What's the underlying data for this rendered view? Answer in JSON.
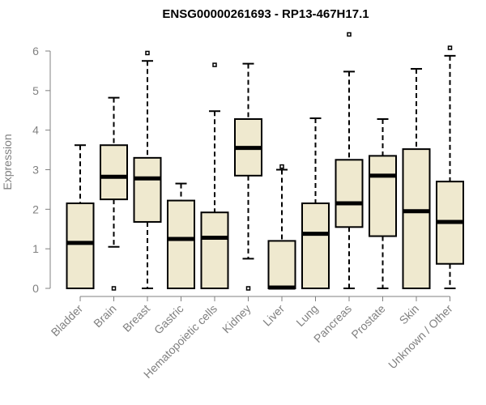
{
  "chart_data": {
    "type": "box",
    "title": "ENSG00000261693 - RP13-467H17.1",
    "ylabel": "Expression",
    "ylim": [
      0,
      6
    ],
    "yticks": [
      0,
      1,
      2,
      3,
      4,
      5,
      6
    ],
    "categories": [
      "Bladder",
      "Brain",
      "Breast",
      "Gastric",
      "Hematopoietic cells",
      "Kidney",
      "Liver",
      "Lung",
      "Pancreas",
      "Prostate",
      "Skin",
      "Unknown / Other"
    ],
    "boxes": [
      {
        "min": 0,
        "q1": 0,
        "median": 1.15,
        "q3": 2.15,
        "max": 3.62,
        "outliers": []
      },
      {
        "min": 1.05,
        "q1": 2.25,
        "median": 2.82,
        "q3": 3.62,
        "max": 4.82,
        "outliers": [
          0
        ]
      },
      {
        "min": 0,
        "q1": 1.68,
        "median": 2.78,
        "q3": 3.3,
        "max": 5.75,
        "outliers": [
          5.95
        ]
      },
      {
        "min": 0,
        "q1": 0,
        "median": 1.25,
        "q3": 2.22,
        "max": 2.65,
        "outliers": []
      },
      {
        "min": 0,
        "q1": 0,
        "median": 1.28,
        "q3": 1.92,
        "max": 4.48,
        "outliers": [
          5.65
        ]
      },
      {
        "min": 0.75,
        "q1": 2.85,
        "median": 3.55,
        "q3": 4.28,
        "max": 5.68,
        "outliers": [
          0
        ]
      },
      {
        "min": 0,
        "q1": 0,
        "median": 0.02,
        "q3": 1.2,
        "max": 3.0,
        "outliers": [
          3.08
        ]
      },
      {
        "min": 0,
        "q1": 0,
        "median": 1.38,
        "q3": 2.15,
        "max": 4.3,
        "outliers": []
      },
      {
        "min": 0,
        "q1": 1.55,
        "median": 2.15,
        "q3": 3.25,
        "max": 5.48,
        "outliers": [
          6.42
        ]
      },
      {
        "min": 0,
        "q1": 1.32,
        "median": 2.85,
        "q3": 3.35,
        "max": 4.28,
        "outliers": []
      },
      {
        "min": 0,
        "q1": 0,
        "median": 1.95,
        "q3": 3.52,
        "max": 5.55,
        "outliers": []
      },
      {
        "min": 0,
        "q1": 0.62,
        "median": 1.68,
        "q3": 2.7,
        "max": 5.88,
        "outliers": [
          6.08
        ]
      }
    ],
    "colors": {
      "box_fill": "#efe9cf",
      "stroke": "#000000",
      "axis": "#808080"
    }
  }
}
